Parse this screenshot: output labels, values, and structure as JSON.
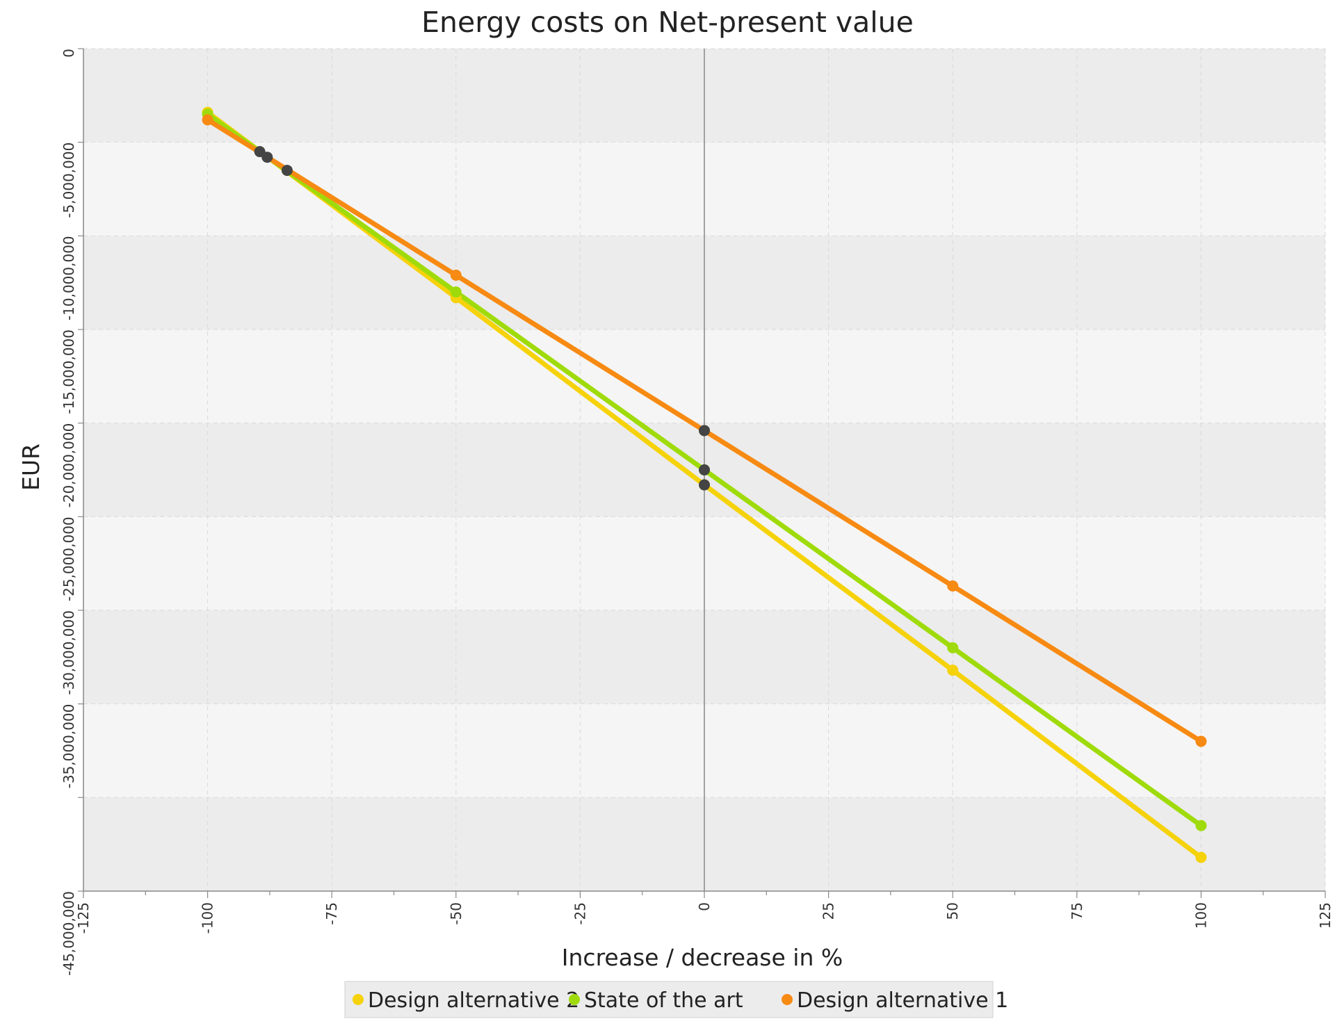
{
  "chart_data": {
    "type": "line",
    "title": "Energy costs on Net-present value",
    "xlabel": "Increase / decrease in %",
    "ylabel": "EUR",
    "xlim": [
      -125,
      125
    ],
    "ylim": [
      -45000000,
      0
    ],
    "x_ticks": [
      "-125",
      "-100",
      "-75",
      "-50",
      "-25",
      "0",
      "25",
      "50",
      "75",
      "100",
      "125"
    ],
    "x_tick_values": [
      -125,
      -100,
      -75,
      -50,
      -25,
      0,
      25,
      50,
      75,
      100,
      125
    ],
    "y_ticks": [
      "0",
      "-5,000,000",
      "-10,000,000",
      "-15,000,000",
      "-20,000,000",
      "-25,000,000",
      "-30,000,000",
      "-35,000,000",
      "-45,000,000"
    ],
    "y_tick_values": [
      0,
      -5000000,
      -10000000,
      -15000000,
      -20000000,
      -25000000,
      -30000000,
      -35000000,
      -45000000
    ],
    "y_gridlines": [
      0,
      -5000000,
      -10000000,
      -15000000,
      -20000000,
      -25000000,
      -30000000,
      -35000000,
      -40000000,
      -45000000
    ],
    "grid": true,
    "legend_position": "bottom",
    "series": [
      {
        "name": "Design alternative 2",
        "color": "#f5d20a",
        "points": [
          [
            -100,
            -3400000
          ],
          [
            -50,
            -13300000
          ],
          [
            0,
            -23300000
          ],
          [
            50,
            -33200000
          ],
          [
            100,
            -43200000
          ]
        ]
      },
      {
        "name": "State of the art",
        "color": "#9fdb0a",
        "points": [
          [
            -100,
            -3500000
          ],
          [
            -50,
            -13000000
          ],
          [
            0,
            -22500000
          ],
          [
            50,
            -32000000
          ],
          [
            100,
            -41500000
          ]
        ]
      },
      {
        "name": "Design alternative 1",
        "color": "#f78a12",
        "points": [
          [
            -100,
            -3800000
          ],
          [
            -50,
            -12100000
          ],
          [
            0,
            -20400000
          ],
          [
            50,
            -28700000
          ],
          [
            100,
            -37000000
          ]
        ]
      }
    ],
    "intersection_markers": {
      "color": "#444444",
      "points": [
        [
          -89.5,
          -5500000
        ],
        [
          -88,
          -5800000
        ],
        [
          -84,
          -6500000
        ],
        [
          0,
          -20400000
        ],
        [
          0,
          -22500000
        ],
        [
          0,
          -23300000
        ]
      ]
    }
  }
}
